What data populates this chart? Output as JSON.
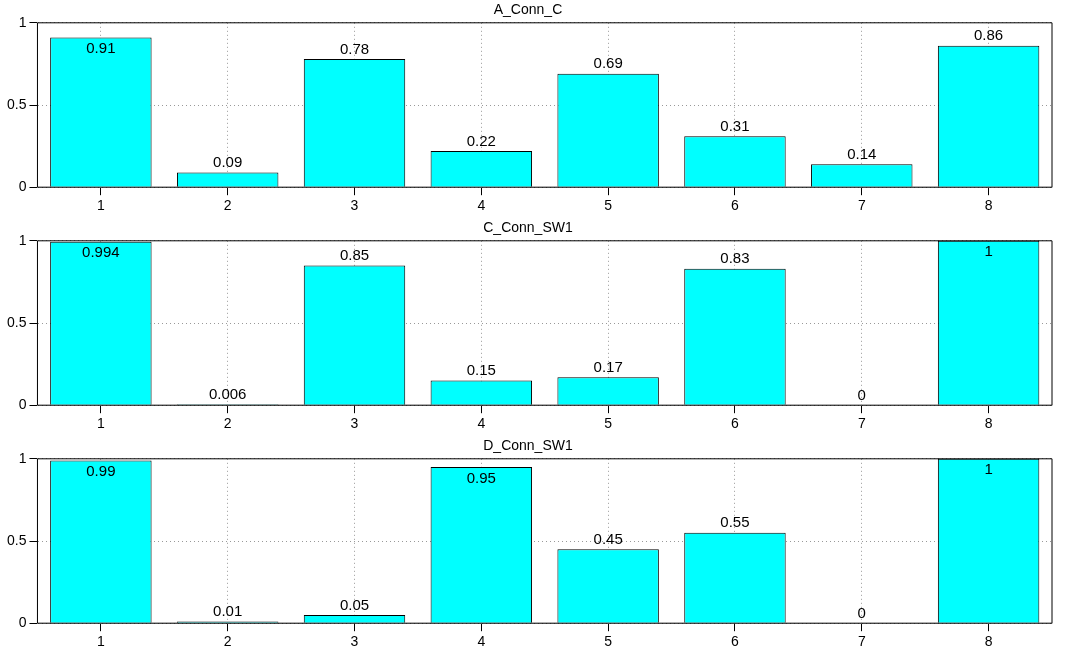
{
  "chart_data": [
    {
      "type": "bar",
      "title": "A_Conn_C",
      "categories": [
        "1",
        "2",
        "3",
        "4",
        "5",
        "6",
        "7",
        "8"
      ],
      "color": "#00ffff",
      "values": [
        0.91,
        0.09,
        0.78,
        0.22,
        0.69,
        0.31,
        0.14,
        0.86
      ],
      "ylim": [
        0,
        1
      ],
      "yticks": [
        0,
        0.5,
        1
      ],
      "grid": true,
      "data_labels": true
    },
    {
      "type": "bar",
      "title": "C_Conn_SW1",
      "categories": [
        "1",
        "2",
        "3",
        "4",
        "5",
        "6",
        "7",
        "8"
      ],
      "color": "#00ffff",
      "values": [
        0.994,
        0.006,
        0.85,
        0.15,
        0.17,
        0.83,
        0,
        1
      ],
      "ylim": [
        0,
        1
      ],
      "yticks": [
        0,
        0.5,
        1
      ],
      "grid": true,
      "data_labels": true
    },
    {
      "type": "bar",
      "title": "D_Conn_SW1",
      "categories": [
        "1",
        "2",
        "3",
        "4",
        "5",
        "6",
        "7",
        "8"
      ],
      "color": "#00ffff",
      "values": [
        0.99,
        0.01,
        0.05,
        0.95,
        0.45,
        0.55,
        0,
        1
      ],
      "ylim": [
        0,
        1
      ],
      "yticks": [
        0,
        0.5,
        1
      ],
      "grid": true,
      "data_labels": true
    }
  ]
}
